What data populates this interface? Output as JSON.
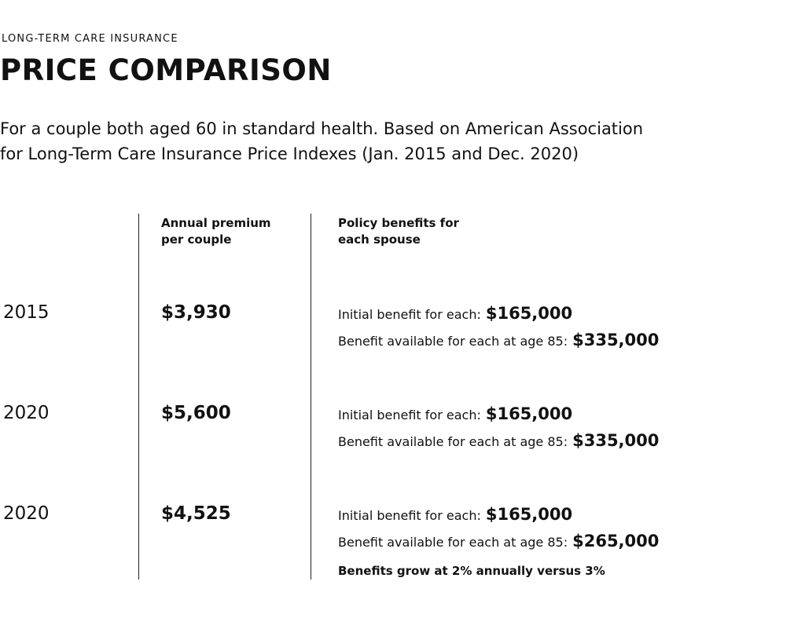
{
  "header": {
    "kicker": "LONG-TERM CARE INSURANCE",
    "title": "PRICE COMPARISON",
    "subtitle": [
      "For a couple both aged 60 in standard health. Based on American Association",
      "for Long-Term Care Insurance Price Indexes (Jan. 2015 and Dec. 2020)"
    ]
  },
  "table": {
    "columns": [
      [
        "Annual premium",
        "per couple"
      ],
      [
        "Policy benefits for",
        "each spouse"
      ]
    ],
    "rows": [
      {
        "year": "2015",
        "premium": "$3,930",
        "benefits": [
          [
            "Initial benefit for each:",
            "$165,000"
          ],
          [
            "Benefit available for each at age 85:",
            "$335,000"
          ]
        ]
      },
      {
        "year": "2020",
        "premium": "$5,600",
        "benefits": [
          [
            "Initial benefit for each:",
            "$165,000"
          ],
          [
            "Benefit available for each at age 85:",
            "$335,000"
          ]
        ]
      },
      {
        "year": "2020",
        "premium": "$4,525",
        "benefits": [
          [
            "Initial benefit for each:",
            "$165,000"
          ],
          [
            "Benefit available for each at age 85:",
            "$265,000"
          ]
        ],
        "note": "Benefits grow at 2% annually versus 3%"
      }
    ]
  }
}
